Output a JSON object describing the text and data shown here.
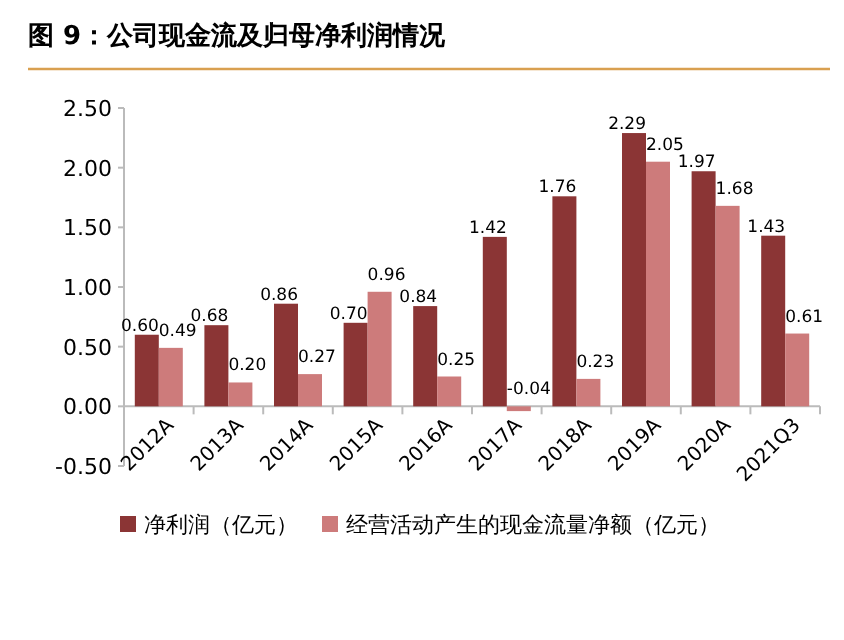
{
  "chart_data": {
    "type": "bar",
    "title": "图 9：公司现金流及归母净利润情况",
    "categories": [
      "2012A",
      "2013A",
      "2014A",
      "2015A",
      "2016A",
      "2017A",
      "2018A",
      "2019A",
      "2020A",
      "2021Q3"
    ],
    "series": [
      {
        "name": "净利润（亿元）",
        "color": "#8b3535",
        "values": [
          0.6,
          0.68,
          0.86,
          0.7,
          0.84,
          1.42,
          1.76,
          2.29,
          1.97,
          1.43
        ],
        "value_labels": [
          "0.60",
          "0.68",
          "0.86",
          "0.70",
          "0.84",
          "1.42",
          "1.76",
          "2.29",
          "1.97",
          "1.43"
        ]
      },
      {
        "name": "经营活动产生的现金流量净额（亿元）",
        "color": "#cd7b7b",
        "values": [
          0.49,
          0.2,
          0.27,
          0.96,
          0.25,
          -0.04,
          0.23,
          2.05,
          1.68,
          0.61
        ],
        "value_labels": [
          "0.49",
          "0.20",
          "0.27",
          "0.96",
          "0.25",
          "-0.04",
          "0.23",
          "2.05",
          "1.68",
          "0.61"
        ]
      }
    ],
    "ylim": [
      -0.5,
      2.5
    ],
    "yticks": [
      {
        "value": -0.5,
        "label": "-0.50"
      },
      {
        "value": 0,
        "label": "0.00"
      },
      {
        "value": 0.5,
        "label": "0.50"
      },
      {
        "value": 1,
        "label": "1.00"
      },
      {
        "value": 1.5,
        "label": "1.50"
      },
      {
        "value": 2,
        "label": "2.00"
      },
      {
        "value": 2.5,
        "label": "2.50"
      }
    ],
    "grid": false,
    "legend": "bottom"
  }
}
